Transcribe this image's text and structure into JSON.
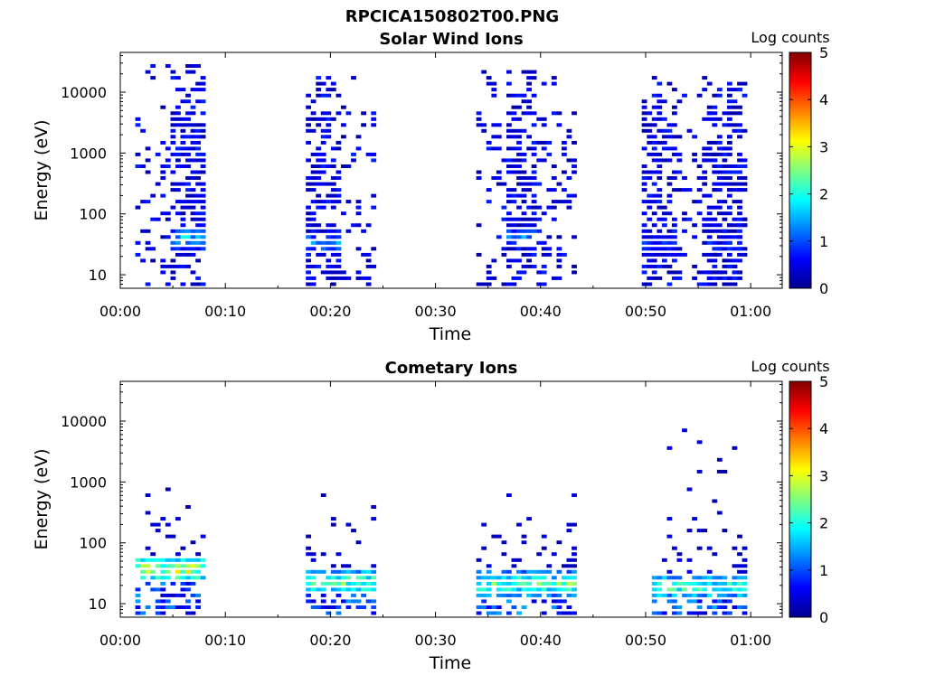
{
  "figure": {
    "title": "RPCICA150802T00.PNG"
  },
  "chart_data": [
    {
      "type": "heatmap",
      "title": "Solar Wind Ions",
      "xlabel": "Time",
      "ylabel": "Energy (eV)",
      "y_scale": "log",
      "ylim": [
        6,
        45000
      ],
      "xlim_minutes": [
        0,
        63
      ],
      "x_ticks": [
        "00:00",
        "00:10",
        "00:20",
        "00:30",
        "00:40",
        "00:50",
        "01:00"
      ],
      "y_ticks": [
        "10",
        "100",
        "1000",
        "10000"
      ],
      "colorbar": {
        "label": "Log counts",
        "min": 0,
        "max": 5,
        "ticks": [
          "0",
          "1",
          "2",
          "3",
          "4",
          "5"
        ]
      },
      "bursts": [
        {
          "start_min": 1.5,
          "end_min": 8.1,
          "core_start_min": 4.8,
          "core_end_min": 8.1,
          "e_min": 6,
          "e_max": 30000,
          "peak_log_counts": 2.2,
          "peak_energy_ev": 38
        },
        {
          "start_min": 17.7,
          "end_min": 24.0,
          "core_start_min": 17.7,
          "core_end_min": 21.0,
          "e_min": 6,
          "e_max": 20000,
          "peak_log_counts": 1.8,
          "peak_energy_ev": 32
        },
        {
          "start_min": 33.9,
          "end_min": 43.0,
          "core_start_min": 36.9,
          "core_end_min": 39.8,
          "e_min": 6,
          "e_max": 22000,
          "peak_log_counts": 1.6,
          "peak_energy_ev": 40
        },
        {
          "start_min": 49.8,
          "end_min": 59.3,
          "core_start_min": 49.8,
          "core_end_min": 53.0,
          "e_min": 6,
          "e_max": 20000,
          "peak_log_counts": 1.2,
          "peak_energy_ev": 30
        },
        {
          "start_min": 55.5,
          "end_min": 59.3,
          "core_start_min": 56.0,
          "core_end_min": 59.3,
          "e_min": 6,
          "e_max": 15000,
          "peak_log_counts": 1.2,
          "peak_energy_ev": 30
        }
      ]
    },
    {
      "type": "heatmap",
      "title": "Cometary Ions",
      "xlabel": "Time",
      "ylabel": "Energy (eV)",
      "y_scale": "log",
      "ylim": [
        6,
        45000
      ],
      "xlim_minutes": [
        0,
        63
      ],
      "x_ticks": [
        "00:00",
        "00:10",
        "00:20",
        "00:30",
        "00:40",
        "00:50",
        "01:00"
      ],
      "y_ticks": [
        "10",
        "100",
        "1000",
        "10000"
      ],
      "colorbar": {
        "label": "Log counts",
        "min": 0,
        "max": 5,
        "ticks": [
          "0",
          "1",
          "2",
          "3",
          "4",
          "5"
        ]
      },
      "bursts": [
        {
          "start_min": 1.5,
          "end_min": 8.1,
          "core_start_min": 1.5,
          "core_end_min": 8.1,
          "e_min": 6,
          "e_max": 1000,
          "peak_log_counts": 3.7,
          "peak_energy_ev": 35
        },
        {
          "start_min": 17.7,
          "end_min": 24.0,
          "core_start_min": 17.7,
          "core_end_min": 24.0,
          "e_min": 6,
          "e_max": 700,
          "peak_log_counts": 3.2,
          "peak_energy_ev": 22
        },
        {
          "start_min": 33.9,
          "end_min": 43.0,
          "core_start_min": 33.9,
          "core_end_min": 43.0,
          "e_min": 6,
          "e_max": 1300,
          "peak_log_counts": 3.0,
          "peak_energy_ev": 20
        },
        {
          "start_min": 51.0,
          "end_min": 59.3,
          "core_start_min": 51.0,
          "core_end_min": 59.3,
          "e_min": 6,
          "e_max": 8000,
          "peak_log_counts": 2.8,
          "peak_energy_ev": 18
        }
      ]
    }
  ]
}
